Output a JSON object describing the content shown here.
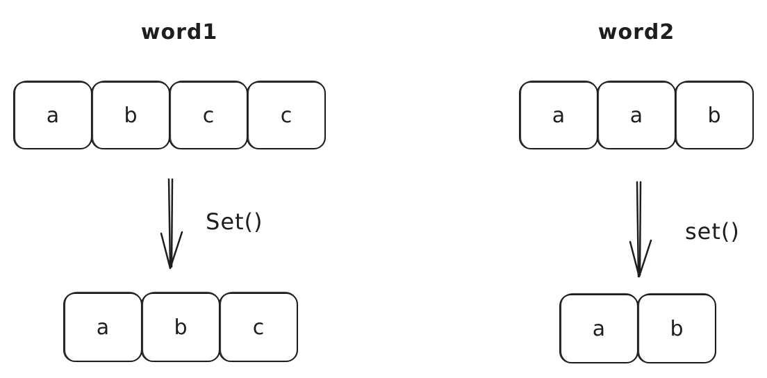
{
  "left": {
    "title": "word1",
    "input_cells": [
      "a",
      "b",
      "c",
      "c"
    ],
    "operation": "Set()",
    "output_cells": [
      "a",
      "b",
      "c"
    ]
  },
  "right": {
    "title": "word2",
    "input_cells": [
      "a",
      "a",
      "b"
    ],
    "operation": "set()",
    "output_cells": [
      "a",
      "b"
    ]
  }
}
